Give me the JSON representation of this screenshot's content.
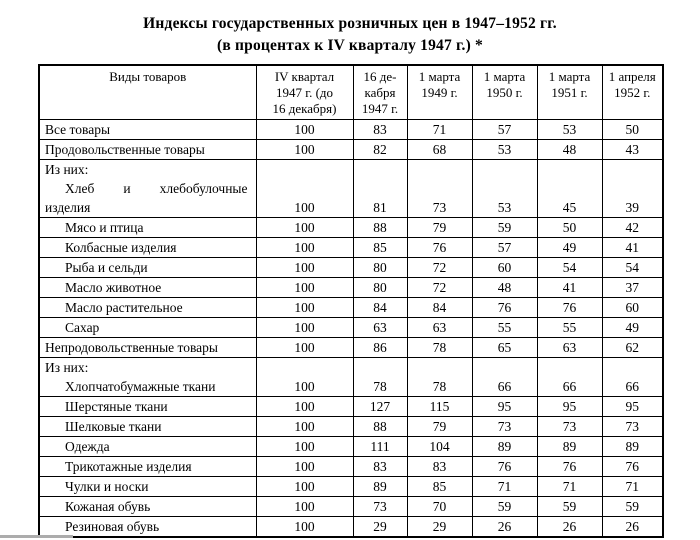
{
  "title": {
    "line1": "Индексы государственных розничных цен в 1947–1952 гг.",
    "line2": "(в процентах к IV кварталу 1947 г.) *"
  },
  "table": {
    "headers": [
      {
        "lines": [
          "Виды товаров"
        ]
      },
      {
        "lines": [
          "IV квартал",
          "1947 г. (до",
          "16 декабря)"
        ]
      },
      {
        "lines": [
          "16 де-",
          "кабря",
          "1947 г."
        ]
      },
      {
        "lines": [
          "1 марта",
          "1949 г."
        ]
      },
      {
        "lines": [
          "1 марта",
          "1950 г."
        ]
      },
      {
        "lines": [
          "1 марта",
          "1951 г."
        ]
      },
      {
        "lines": [
          "1 апреля",
          "1952 г."
        ]
      }
    ],
    "rows": [
      {
        "lines": [
          {
            "text": "Все товары",
            "indent": 0
          }
        ],
        "values": [
          "100",
          "83",
          "71",
          "57",
          "53",
          "50"
        ]
      },
      {
        "lines": [
          {
            "text": "Продовольственные товары",
            "indent": 0
          }
        ],
        "values": [
          "100",
          "82",
          "68",
          "53",
          "48",
          "43"
        ]
      },
      {
        "lines": [
          {
            "text": "Из них:",
            "indent": 0
          },
          {
            "text": "Хлеб и хлебобулочные",
            "indent": 1,
            "justify": true
          },
          {
            "text": "изделия",
            "indent": 0
          }
        ],
        "values": [
          "100",
          "81",
          "73",
          "53",
          "45",
          "39"
        ]
      },
      {
        "lines": [
          {
            "text": "Мясо и птица",
            "indent": 1
          }
        ],
        "values": [
          "100",
          "88",
          "79",
          "59",
          "50",
          "42"
        ]
      },
      {
        "lines": [
          {
            "text": "Колбасные изделия",
            "indent": 1
          }
        ],
        "values": [
          "100",
          "85",
          "76",
          "57",
          "49",
          "41"
        ]
      },
      {
        "lines": [
          {
            "text": "Рыба и сельди",
            "indent": 1
          }
        ],
        "values": [
          "100",
          "80",
          "72",
          "60",
          "54",
          "54"
        ]
      },
      {
        "lines": [
          {
            "text": "Масло животное",
            "indent": 1
          }
        ],
        "values": [
          "100",
          "80",
          "72",
          "48",
          "41",
          "37"
        ]
      },
      {
        "lines": [
          {
            "text": "Масло растительное",
            "indent": 1
          }
        ],
        "values": [
          "100",
          "84",
          "84",
          "76",
          "76",
          "60"
        ]
      },
      {
        "lines": [
          {
            "text": "Сахар",
            "indent": 1
          }
        ],
        "values": [
          "100",
          "63",
          "63",
          "55",
          "55",
          "49"
        ]
      },
      {
        "lines": [
          {
            "text": "Непродовольственные товары",
            "indent": 0
          }
        ],
        "values": [
          "100",
          "86",
          "78",
          "65",
          "63",
          "62"
        ]
      },
      {
        "lines": [
          {
            "text": "Из них:",
            "indent": 0
          },
          {
            "text": "Хлопчатобумажные ткани",
            "indent": 1
          }
        ],
        "values": [
          "100",
          "78",
          "78",
          "66",
          "66",
          "66"
        ]
      },
      {
        "lines": [
          {
            "text": "Шерстяные ткани",
            "indent": 1
          }
        ],
        "values": [
          "100",
          "127",
          "115",
          "95",
          "95",
          "95"
        ]
      },
      {
        "lines": [
          {
            "text": "Шелковые ткани",
            "indent": 1
          }
        ],
        "values": [
          "100",
          "88",
          "79",
          "73",
          "73",
          "73"
        ]
      },
      {
        "lines": [
          {
            "text": "Одежда",
            "indent": 1
          }
        ],
        "values": [
          "100",
          "111",
          "104",
          "89",
          "89",
          "89"
        ]
      },
      {
        "lines": [
          {
            "text": "Трикотажные изделия",
            "indent": 1
          }
        ],
        "values": [
          "100",
          "83",
          "83",
          "76",
          "76",
          "76"
        ]
      },
      {
        "lines": [
          {
            "text": "Чулки и носки",
            "indent": 1
          }
        ],
        "values": [
          "100",
          "89",
          "85",
          "71",
          "71",
          "71"
        ]
      },
      {
        "lines": [
          {
            "text": "Кожаная обувь",
            "indent": 1
          }
        ],
        "values": [
          "100",
          "73",
          "70",
          "59",
          "59",
          "59"
        ]
      },
      {
        "lines": [
          {
            "text": "Резиновая обувь",
            "indent": 1
          }
        ],
        "values": [
          "100",
          "29",
          "29",
          "26",
          "26",
          "26"
        ]
      }
    ]
  },
  "decor": {
    "bottom_bar_color": "#acacac"
  }
}
